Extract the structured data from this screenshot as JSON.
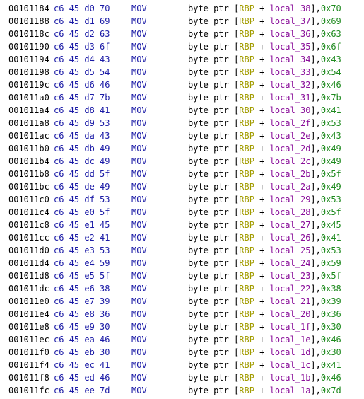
{
  "rows": [
    {
      "address": "00101184",
      "bytes": "c6 45 d0 70",
      "mnemonic": "MOV",
      "ptr": "byte ptr [",
      "reg": "RBP",
      "plus": " + ",
      "local": "local_38",
      "close": "],",
      "imm": "0x70"
    },
    {
      "address": "00101188",
      "bytes": "c6 45 d1 69",
      "mnemonic": "MOV",
      "ptr": "byte ptr [",
      "reg": "RBP",
      "plus": " + ",
      "local": "local_37",
      "close": "],",
      "imm": "0x69"
    },
    {
      "address": "0010118c",
      "bytes": "c6 45 d2 63",
      "mnemonic": "MOV",
      "ptr": "byte ptr [",
      "reg": "RBP",
      "plus": " + ",
      "local": "local_36",
      "close": "],",
      "imm": "0x63"
    },
    {
      "address": "00101190",
      "bytes": "c6 45 d3 6f",
      "mnemonic": "MOV",
      "ptr": "byte ptr [",
      "reg": "RBP",
      "plus": " + ",
      "local": "local_35",
      "close": "],",
      "imm": "0x6f"
    },
    {
      "address": "00101194",
      "bytes": "c6 45 d4 43",
      "mnemonic": "MOV",
      "ptr": "byte ptr [",
      "reg": "RBP",
      "plus": " + ",
      "local": "local_34",
      "close": "],",
      "imm": "0x43"
    },
    {
      "address": "00101198",
      "bytes": "c6 45 d5 54",
      "mnemonic": "MOV",
      "ptr": "byte ptr [",
      "reg": "RBP",
      "plus": " + ",
      "local": "local_33",
      "close": "],",
      "imm": "0x54"
    },
    {
      "address": "0010119c",
      "bytes": "c6 45 d6 46",
      "mnemonic": "MOV",
      "ptr": "byte ptr [",
      "reg": "RBP",
      "plus": " + ",
      "local": "local_32",
      "close": "],",
      "imm": "0x46"
    },
    {
      "address": "001011a0",
      "bytes": "c6 45 d7 7b",
      "mnemonic": "MOV",
      "ptr": "byte ptr [",
      "reg": "RBP",
      "plus": " + ",
      "local": "local_31",
      "close": "],",
      "imm": "0x7b"
    },
    {
      "address": "001011a4",
      "bytes": "c6 45 d8 41",
      "mnemonic": "MOV",
      "ptr": "byte ptr [",
      "reg": "RBP",
      "plus": " + ",
      "local": "local_30",
      "close": "],",
      "imm": "0x41"
    },
    {
      "address": "001011a8",
      "bytes": "c6 45 d9 53",
      "mnemonic": "MOV",
      "ptr": "byte ptr [",
      "reg": "RBP",
      "plus": " + ",
      "local": "local_2f",
      "close": "],",
      "imm": "0x53"
    },
    {
      "address": "001011ac",
      "bytes": "c6 45 da 43",
      "mnemonic": "MOV",
      "ptr": "byte ptr [",
      "reg": "RBP",
      "plus": " + ",
      "local": "local_2e",
      "close": "],",
      "imm": "0x43"
    },
    {
      "address": "001011b0",
      "bytes": "c6 45 db 49",
      "mnemonic": "MOV",
      "ptr": "byte ptr [",
      "reg": "RBP",
      "plus": " + ",
      "local": "local_2d",
      "close": "],",
      "imm": "0x49"
    },
    {
      "address": "001011b4",
      "bytes": "c6 45 dc 49",
      "mnemonic": "MOV",
      "ptr": "byte ptr [",
      "reg": "RBP",
      "plus": " + ",
      "local": "local_2c",
      "close": "],",
      "imm": "0x49"
    },
    {
      "address": "001011b8",
      "bytes": "c6 45 dd 5f",
      "mnemonic": "MOV",
      "ptr": "byte ptr [",
      "reg": "RBP",
      "plus": " + ",
      "local": "local_2b",
      "close": "],",
      "imm": "0x5f"
    },
    {
      "address": "001011bc",
      "bytes": "c6 45 de 49",
      "mnemonic": "MOV",
      "ptr": "byte ptr [",
      "reg": "RBP",
      "plus": " + ",
      "local": "local_2a",
      "close": "],",
      "imm": "0x49"
    },
    {
      "address": "001011c0",
      "bytes": "c6 45 df 53",
      "mnemonic": "MOV",
      "ptr": "byte ptr [",
      "reg": "RBP",
      "plus": " + ",
      "local": "local_29",
      "close": "],",
      "imm": "0x53"
    },
    {
      "address": "001011c4",
      "bytes": "c6 45 e0 5f",
      "mnemonic": "MOV",
      "ptr": "byte ptr [",
      "reg": "RBP",
      "plus": " + ",
      "local": "local_28",
      "close": "],",
      "imm": "0x5f"
    },
    {
      "address": "001011c8",
      "bytes": "c6 45 e1 45",
      "mnemonic": "MOV",
      "ptr": "byte ptr [",
      "reg": "RBP",
      "plus": " + ",
      "local": "local_27",
      "close": "],",
      "imm": "0x45"
    },
    {
      "address": "001011cc",
      "bytes": "c6 45 e2 41",
      "mnemonic": "MOV",
      "ptr": "byte ptr [",
      "reg": "RBP",
      "plus": " + ",
      "local": "local_26",
      "close": "],",
      "imm": "0x41"
    },
    {
      "address": "001011d0",
      "bytes": "c6 45 e3 53",
      "mnemonic": "MOV",
      "ptr": "byte ptr [",
      "reg": "RBP",
      "plus": " + ",
      "local": "local_25",
      "close": "],",
      "imm": "0x53"
    },
    {
      "address": "001011d4",
      "bytes": "c6 45 e4 59",
      "mnemonic": "MOV",
      "ptr": "byte ptr [",
      "reg": "RBP",
      "plus": " + ",
      "local": "local_24",
      "close": "],",
      "imm": "0x59"
    },
    {
      "address": "001011d8",
      "bytes": "c6 45 e5 5f",
      "mnemonic": "MOV",
      "ptr": "byte ptr [",
      "reg": "RBP",
      "plus": " + ",
      "local": "local_23",
      "close": "],",
      "imm": "0x5f"
    },
    {
      "address": "001011dc",
      "bytes": "c6 45 e6 38",
      "mnemonic": "MOV",
      "ptr": "byte ptr [",
      "reg": "RBP",
      "plus": " + ",
      "local": "local_22",
      "close": "],",
      "imm": "0x38"
    },
    {
      "address": "001011e0",
      "bytes": "c6 45 e7 39",
      "mnemonic": "MOV",
      "ptr": "byte ptr [",
      "reg": "RBP",
      "plus": " + ",
      "local": "local_21",
      "close": "],",
      "imm": "0x39"
    },
    {
      "address": "001011e4",
      "bytes": "c6 45 e8 36",
      "mnemonic": "MOV",
      "ptr": "byte ptr [",
      "reg": "RBP",
      "plus": " + ",
      "local": "local_20",
      "close": "],",
      "imm": "0x36"
    },
    {
      "address": "001011e8",
      "bytes": "c6 45 e9 30",
      "mnemonic": "MOV",
      "ptr": "byte ptr [",
      "reg": "RBP",
      "plus": " + ",
      "local": "local_1f",
      "close": "],",
      "imm": "0x30"
    },
    {
      "address": "001011ec",
      "bytes": "c6 45 ea 46",
      "mnemonic": "MOV",
      "ptr": "byte ptr [",
      "reg": "RBP",
      "plus": " + ",
      "local": "local_1e",
      "close": "],",
      "imm": "0x46"
    },
    {
      "address": "001011f0",
      "bytes": "c6 45 eb 30",
      "mnemonic": "MOV",
      "ptr": "byte ptr [",
      "reg": "RBP",
      "plus": " + ",
      "local": "local_1d",
      "close": "],",
      "imm": "0x30"
    },
    {
      "address": "001011f4",
      "bytes": "c6 45 ec 41",
      "mnemonic": "MOV",
      "ptr": "byte ptr [",
      "reg": "RBP",
      "plus": " + ",
      "local": "local_1c",
      "close": "],",
      "imm": "0x41"
    },
    {
      "address": "001011f8",
      "bytes": "c6 45 ed 46",
      "mnemonic": "MOV",
      "ptr": "byte ptr [",
      "reg": "RBP",
      "plus": " + ",
      "local": "local_1b",
      "close": "],",
      "imm": "0x46"
    },
    {
      "address": "001011fc",
      "bytes": "c6 45 ee 7d",
      "mnemonic": "MOV",
      "ptr": "byte ptr [",
      "reg": "RBP",
      "plus": " + ",
      "local": "local_1a",
      "close": "],",
      "imm": "0x7d"
    }
  ]
}
